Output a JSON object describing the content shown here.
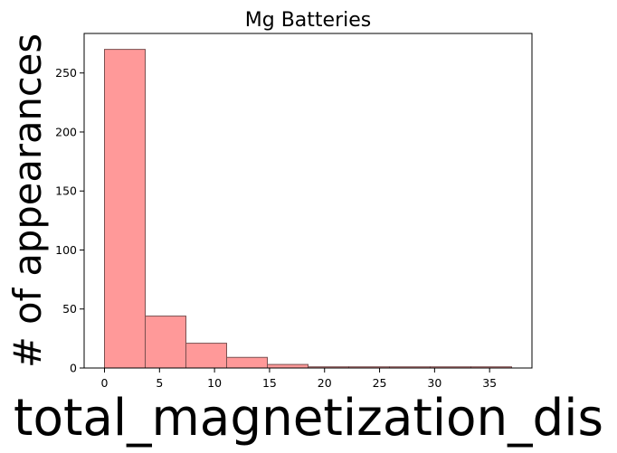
{
  "chart_data": {
    "type": "bar",
    "title": "Mg Batteries",
    "xlabel": "total_magnetization_dis",
    "ylabel": "# of appearances",
    "bin_edges": [
      0,
      3.7,
      7.4,
      11.1,
      14.8,
      18.5,
      22.2,
      25.9,
      29.6,
      33.3,
      37.0
    ],
    "values": [
      270,
      44,
      21,
      9,
      3,
      1,
      1,
      1,
      1,
      1
    ],
    "xlim": [
      -1.85,
      38.85
    ],
    "ylim": [
      0,
      283.5
    ],
    "xticks": [
      0,
      5,
      10,
      15,
      20,
      25,
      30,
      35
    ],
    "yticks": [
      0,
      50,
      100,
      150,
      200,
      250
    ],
    "bar_color": "#ff9999",
    "bar_edge_color": "#7a5050",
    "grid": false,
    "legend": false
  }
}
